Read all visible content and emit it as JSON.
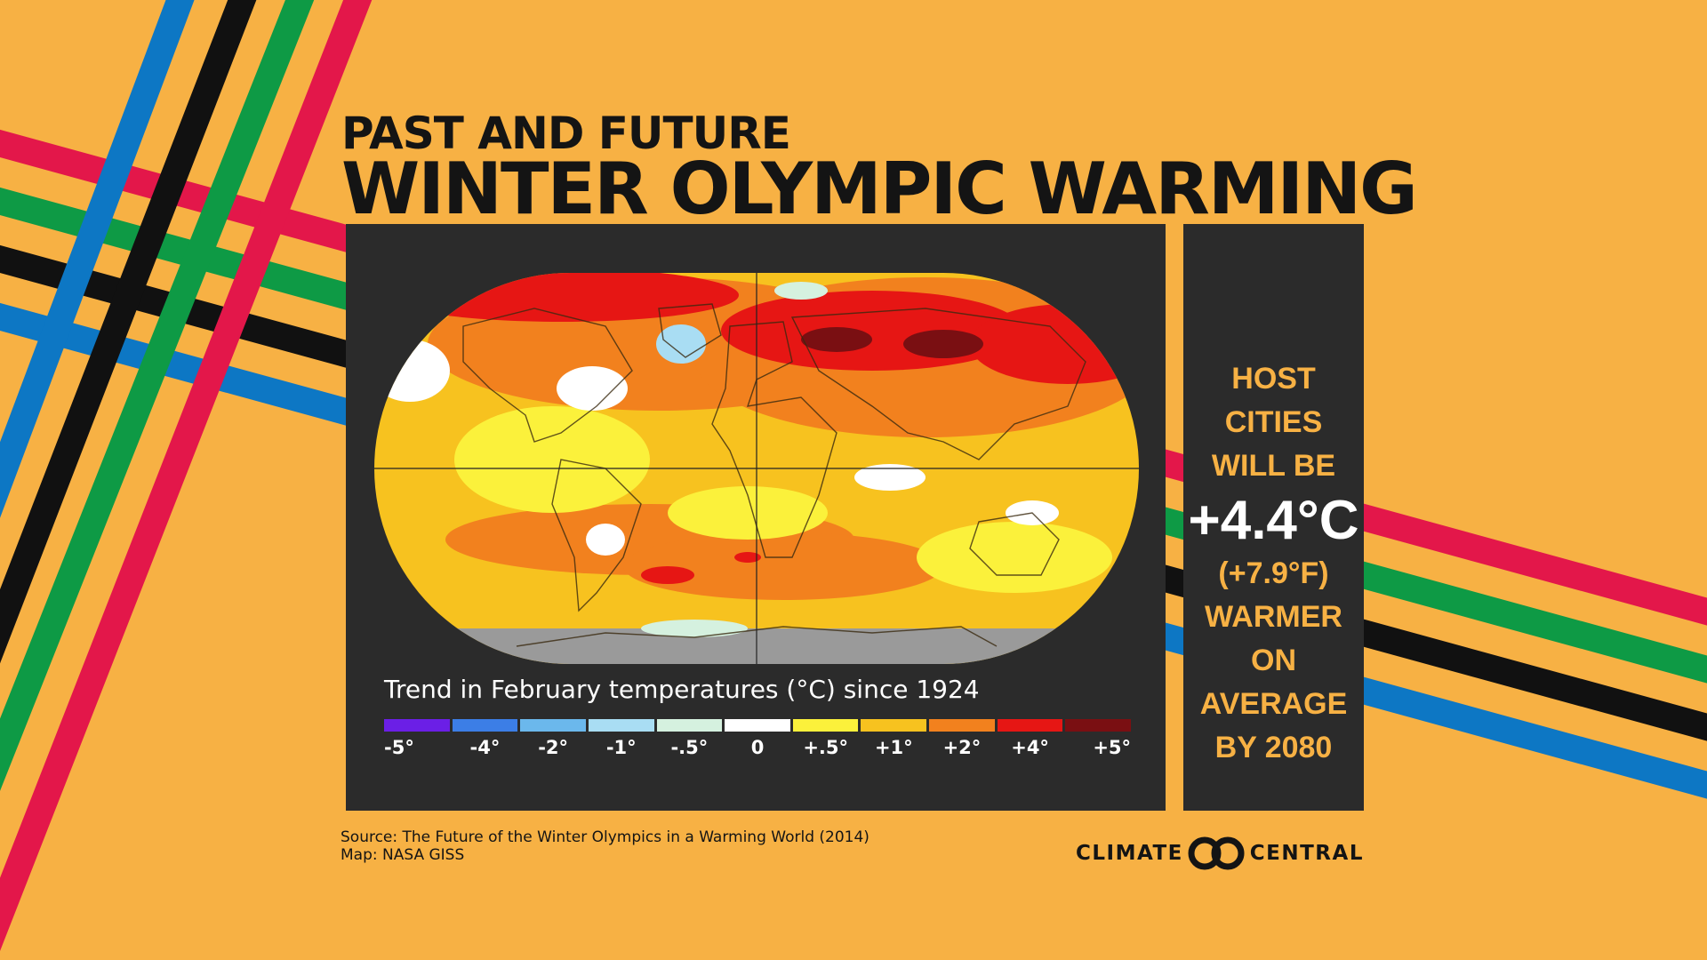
{
  "header": {
    "title_line1": "PAST AND FUTURE",
    "title_line2": "WINTER OLYMPIC WARMING"
  },
  "map": {
    "legend_title": "Trend in February temperatures (°C) since 1924",
    "scale": [
      {
        "label": "-5°",
        "color": "#6B1FE6"
      },
      {
        "label": "-4°",
        "color": "#3C7EE6"
      },
      {
        "label": "-2°",
        "color": "#6BB8EC"
      },
      {
        "label": "-1°",
        "color": "#A9DDF3"
      },
      {
        "label": "-.5°",
        "color": "#D5F1DF"
      },
      {
        "label": "0",
        "color": "#FFFFFF"
      },
      {
        "label": "+.5°",
        "color": "#FBF13B"
      },
      {
        "label": "+1°",
        "color": "#F7C21F"
      },
      {
        "label": "+2°",
        "color": "#F2811E"
      },
      {
        "label": "+4°",
        "color": "#E61614"
      },
      {
        "label": "+5°",
        "color": "#7A0F12"
      }
    ]
  },
  "callout": {
    "line1": "HOST CITIES",
    "line2": "WILL BE",
    "value_c": "+4.4°C",
    "value_f": "(+7.9°F)",
    "line3": "WARMER",
    "line4": "ON AVERAGE",
    "line5": "BY 2080"
  },
  "footer": {
    "source": "Source: The Future of the Winter Olympics in a Warming World (2014)",
    "map_credit": "Map: NASA GISS",
    "brand_left": "CLIMATE",
    "brand_right": "CENTRAL"
  },
  "colors": {
    "background": "#F7B144",
    "panel": "#2B2B2B",
    "accent_text": "#F7B144",
    "ring_blue": "#0D77C4",
    "ring_black": "#111111",
    "ring_green": "#0E9A45",
    "ring_red": "#E3174A"
  }
}
